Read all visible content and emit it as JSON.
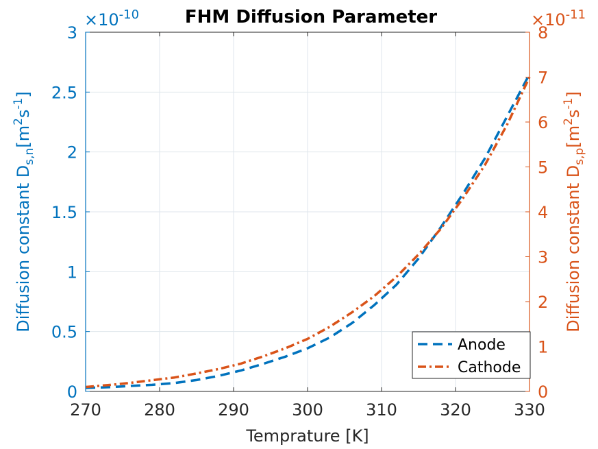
{
  "chart_data": {
    "type": "line",
    "title": "FHM Diffusion Parameter",
    "xlabel": "Temprature [K]",
    "xlim": [
      270,
      330
    ],
    "xticks": [
      "270",
      "280",
      "290",
      "300",
      "310",
      "320",
      "330"
    ],
    "grid": true,
    "legend_position": "bottom-right",
    "y_left": {
      "label_main": "Diffusion constant D",
      "label_sub": "s,n",
      "label_unit": "[m",
      "label_sup1": "2",
      "label_mid": "s",
      "label_sup2": "-1",
      "label_end": "]",
      "exponent_base": "×10",
      "exponent_power": "-10",
      "ylim": [
        0,
        3
      ],
      "ticks": [
        "0",
        "0.5",
        "1",
        "1.5",
        "2",
        "2.5",
        "3"
      ],
      "color": "#0072BD"
    },
    "y_right": {
      "label_main": "Diffusion constant D",
      "label_sub": "s,p",
      "label_unit": "[m",
      "label_sup1": "2",
      "label_mid": "s",
      "label_sup2": "-1",
      "label_end": "]",
      "exponent_base": "×10",
      "exponent_power": "-11",
      "ylim": [
        0,
        8
      ],
      "ticks": [
        "0",
        "1",
        "2",
        "3",
        "4",
        "5",
        "6",
        "7",
        "8"
      ],
      "color": "#D95319"
    },
    "series": [
      {
        "name": "Anode",
        "axis": "left",
        "color": "#0072BD",
        "style": "dashed",
        "x": [
          270,
          273,
          276,
          279,
          282,
          285,
          288,
          291,
          294,
          297,
          300,
          303,
          306,
          309,
          312,
          315,
          318,
          321,
          324,
          327,
          330
        ],
        "values": [
          0.03,
          0.035,
          0.045,
          0.055,
          0.07,
          0.095,
          0.13,
          0.175,
          0.23,
          0.29,
          0.36,
          0.45,
          0.57,
          0.72,
          0.89,
          1.11,
          1.37,
          1.65,
          1.95,
          2.3,
          2.65
        ]
      },
      {
        "name": "Cathode",
        "axis": "right",
        "color": "#D95319",
        "style": "dash-dot",
        "x": [
          270,
          273,
          276,
          279,
          282,
          285,
          288,
          291,
          294,
          297,
          300,
          303,
          306,
          309,
          312,
          315,
          318,
          321,
          324,
          327,
          330
        ],
        "values": [
          0.1,
          0.14,
          0.19,
          0.25,
          0.31,
          0.4,
          0.5,
          0.62,
          0.78,
          0.96,
          1.17,
          1.44,
          1.76,
          2.12,
          2.55,
          3.05,
          3.62,
          4.3,
          5.05,
          5.95,
          7.0
        ]
      }
    ]
  }
}
